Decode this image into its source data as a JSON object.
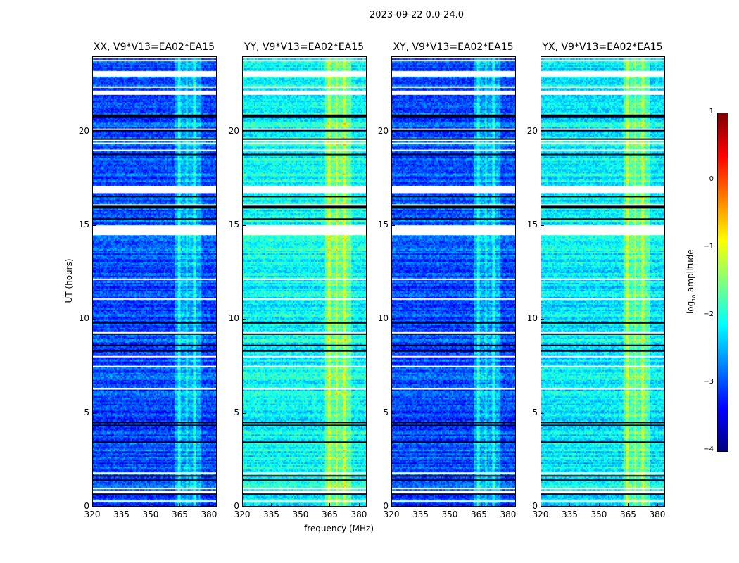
{
  "chart_data": {
    "type": "heatmap",
    "title": "2023-09-22 0.0-24.0",
    "xlabel": "frequency (MHz)",
    "ylabel": "UT (hours)",
    "xlim": [
      320,
      384
    ],
    "ylim": [
      0,
      24
    ],
    "xticks": [
      "320",
      "335",
      "350",
      "365",
      "380"
    ],
    "yticks": [
      "0",
      "5",
      "10",
      "15",
      "20"
    ],
    "panels": [
      {
        "title": "XX, V9*V13=EA02*EA15",
        "base_log_amp": -3.0
      },
      {
        "title": "YY, V9*V13=EA02*EA15",
        "base_log_amp": -2.1
      },
      {
        "title": "XY, V9*V13=EA02*EA15",
        "base_log_amp": -3.0
      },
      {
        "title": "YX, V9*V13=EA02*EA15",
        "base_log_amp": -2.2
      }
    ],
    "rfi_band_mhz": [
      362,
      376
    ],
    "flagged_ut_hours": [
      [
        0.9,
        1.0
      ],
      [
        14.5,
        15.0
      ],
      [
        16.8,
        17.1
      ],
      [
        22.0,
        22.2
      ],
      [
        23.0,
        23.3
      ],
      [
        23.8,
        23.9
      ]
    ],
    "colorbar": {
      "label": "log10 amplitude",
      "label_main": "log",
      "label_sub": "10",
      "label_rest": " amplitude",
      "range": [
        -4,
        1
      ],
      "ticks": [
        "1",
        "0",
        "−1",
        "−2",
        "−3",
        "−4"
      ],
      "colormap": "jet"
    }
  }
}
